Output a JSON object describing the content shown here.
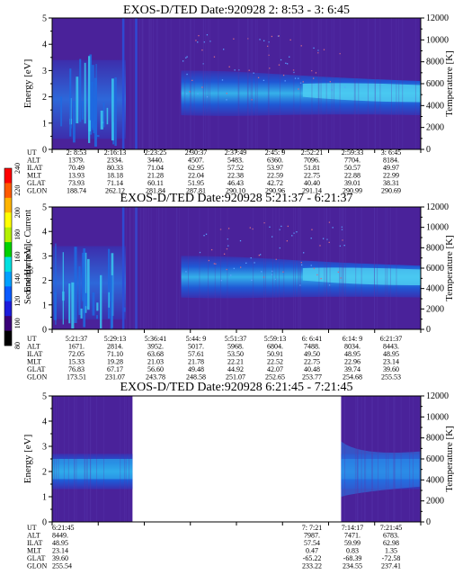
{
  "chart_data": [
    {
      "type": "heatmap",
      "title": "EXOS-D/TED   Date:920928  2: 8:53 - 3: 6:45",
      "ylabel": "Energy [eV]",
      "ylabel_right": "Temperature [K]",
      "ylim": [
        0,
        5
      ],
      "yticks": [
        "0",
        "1",
        "2",
        "3",
        "4",
        "5"
      ],
      "ylim_right": [
        0,
        12000
      ],
      "yticks_right": [
        "0",
        "2000",
        "4000",
        "6000",
        "8000",
        "10000",
        "12000"
      ],
      "x_columns": 9,
      "data_segments": [
        [
          0,
          1
        ]
      ],
      "rows": [
        {
          "name": "UT",
          "values": [
            "2: 8:53",
            "2:16:13",
            "2:23:25",
            "2:30:37",
            "2:37:49",
            "2:45: 9",
            "2:52:21",
            "2:59:33",
            "3: 6:45"
          ]
        },
        {
          "name": "ALT",
          "values": [
            "1379.",
            "2334.",
            "3440.",
            "4507.",
            "5483.",
            "6360.",
            "7096.",
            "7704.",
            "8184."
          ]
        },
        {
          "name": "ILAT",
          "values": [
            "70.49",
            "80.33",
            "71.04",
            "62.95",
            "57.52",
            "53.97",
            "51.81",
            "50.57",
            "49.97"
          ]
        },
        {
          "name": "MLT",
          "values": [
            "13.93",
            "18.18",
            "21.28",
            "22.04",
            "22.38",
            "22.59",
            "22.75",
            "22.88",
            "22.99"
          ]
        },
        {
          "name": "GLAT",
          "values": [
            "73.93",
            "71.14",
            "60.11",
            "51.95",
            "46.43",
            "42.72",
            "40.40",
            "39.01",
            "38.31"
          ]
        },
        {
          "name": "GLON",
          "values": [
            "188.74",
            "262.12",
            "281.84",
            "287.81",
            "290.10",
            "290.96",
            "291.14",
            "290.99",
            "290.69"
          ]
        }
      ]
    },
    {
      "type": "heatmap",
      "title": "EXOS-D/TED   Date:920928  5:21:37 - 6:21:37",
      "ylabel": "Energy [eV]",
      "ylabel_right": "Temperature [K]",
      "ylim": [
        0,
        5
      ],
      "yticks": [
        "0",
        "1",
        "2",
        "3",
        "4",
        "5"
      ],
      "ylim_right": [
        0,
        12000
      ],
      "yticks_right": [
        "0",
        "2000",
        "4000",
        "6000",
        "8000",
        "10000",
        "12000"
      ],
      "x_columns": 9,
      "data_segments": [
        [
          0,
          1
        ]
      ],
      "rows": [
        {
          "name": "UT",
          "values": [
            "5:21:37",
            "5:29:13",
            "5:36:41",
            "5:44: 9",
            "5:51:37",
            "5:59:13",
            "6: 6:41",
            "6:14: 9",
            "6:21:37"
          ]
        },
        {
          "name": "ALT",
          "values": [
            "1671.",
            "2814.",
            "3952.",
            "5017.",
            "5968.",
            "6804.",
            "7488.",
            "8034.",
            "8443."
          ]
        },
        {
          "name": "ILAT",
          "values": [
            "72.05",
            "71.10",
            "63.68",
            "57.61",
            "53.50",
            "50.91",
            "49.50",
            "48.95",
            "48.95"
          ]
        },
        {
          "name": "MLT",
          "values": [
            "15.33",
            "19.28",
            "21.03",
            "21.78",
            "22.21",
            "22.52",
            "22.75",
            "22.96",
            "23.14"
          ]
        },
        {
          "name": "GLAT",
          "values": [
            "76.83",
            "67.17",
            "56.60",
            "49.48",
            "44.92",
            "42.07",
            "40.48",
            "39.74",
            "39.60"
          ]
        },
        {
          "name": "GLON",
          "values": [
            "173.51",
            "231.07",
            "243.78",
            "248.58",
            "251.07",
            "252.65",
            "253.77",
            "254.68",
            "255.53"
          ]
        }
      ]
    },
    {
      "type": "heatmap",
      "title": "EXOS-D/TED   Date:920928  6:21:45 - 7:21:45",
      "ylabel": "Energy [eV]",
      "ylabel_right": "Temperature [K]",
      "ylim": [
        0,
        5
      ],
      "yticks": [
        "0",
        "1",
        "2",
        "3",
        "4",
        "5"
      ],
      "ylim_right": [
        0,
        12000
      ],
      "yticks_right": [
        "0",
        "2000",
        "4000",
        "6000",
        "8000",
        "10000",
        "12000"
      ],
      "x_columns": 9,
      "data_segments": [
        [
          0,
          0.218
        ],
        [
          0.784,
          1
        ]
      ],
      "rows": [
        {
          "name": "UT",
          "values": [
            "6:21:45",
            "",
            "",
            "",
            "",
            "",
            "7: 7:21",
            "7:14:17",
            "7:21:45"
          ]
        },
        {
          "name": "ALT",
          "values": [
            "8449.",
            "",
            "",
            "",
            "",
            "",
            "7987.",
            "7471.",
            "6783."
          ]
        },
        {
          "name": "ILAT",
          "values": [
            "48.95",
            "",
            "",
            "",
            "",
            "",
            "57.54",
            "59.99",
            "62.98"
          ]
        },
        {
          "name": "MLT",
          "values": [
            "23.14",
            "",
            "",
            "",
            "",
            "",
            "0.47",
            "0.83",
            "1.35"
          ]
        },
        {
          "name": "GLAT",
          "values": [
            "39.60",
            "",
            "",
            "",
            "",
            "",
            "-65.22",
            "-68.39",
            "-72.58"
          ]
        },
        {
          "name": "GLON",
          "values": [
            "255.54",
            "",
            "",
            "",
            "",
            "",
            "233.22",
            "234.55",
            "237.41"
          ]
        }
      ]
    }
  ],
  "colorbar": {
    "label": "Second Harmonic Current",
    "ticks": [
      "80",
      "100",
      "120",
      "140",
      "160",
      "180",
      "200",
      "220",
      "240"
    ],
    "colors": [
      "#000000",
      "#3a0078",
      "#1c1cdc",
      "#0a5aff",
      "#00a0ff",
      "#00e0e0",
      "#00d200",
      "#b4f000",
      "#ffff00",
      "#ffb400",
      "#ff5a00",
      "#ff0000"
    ]
  }
}
